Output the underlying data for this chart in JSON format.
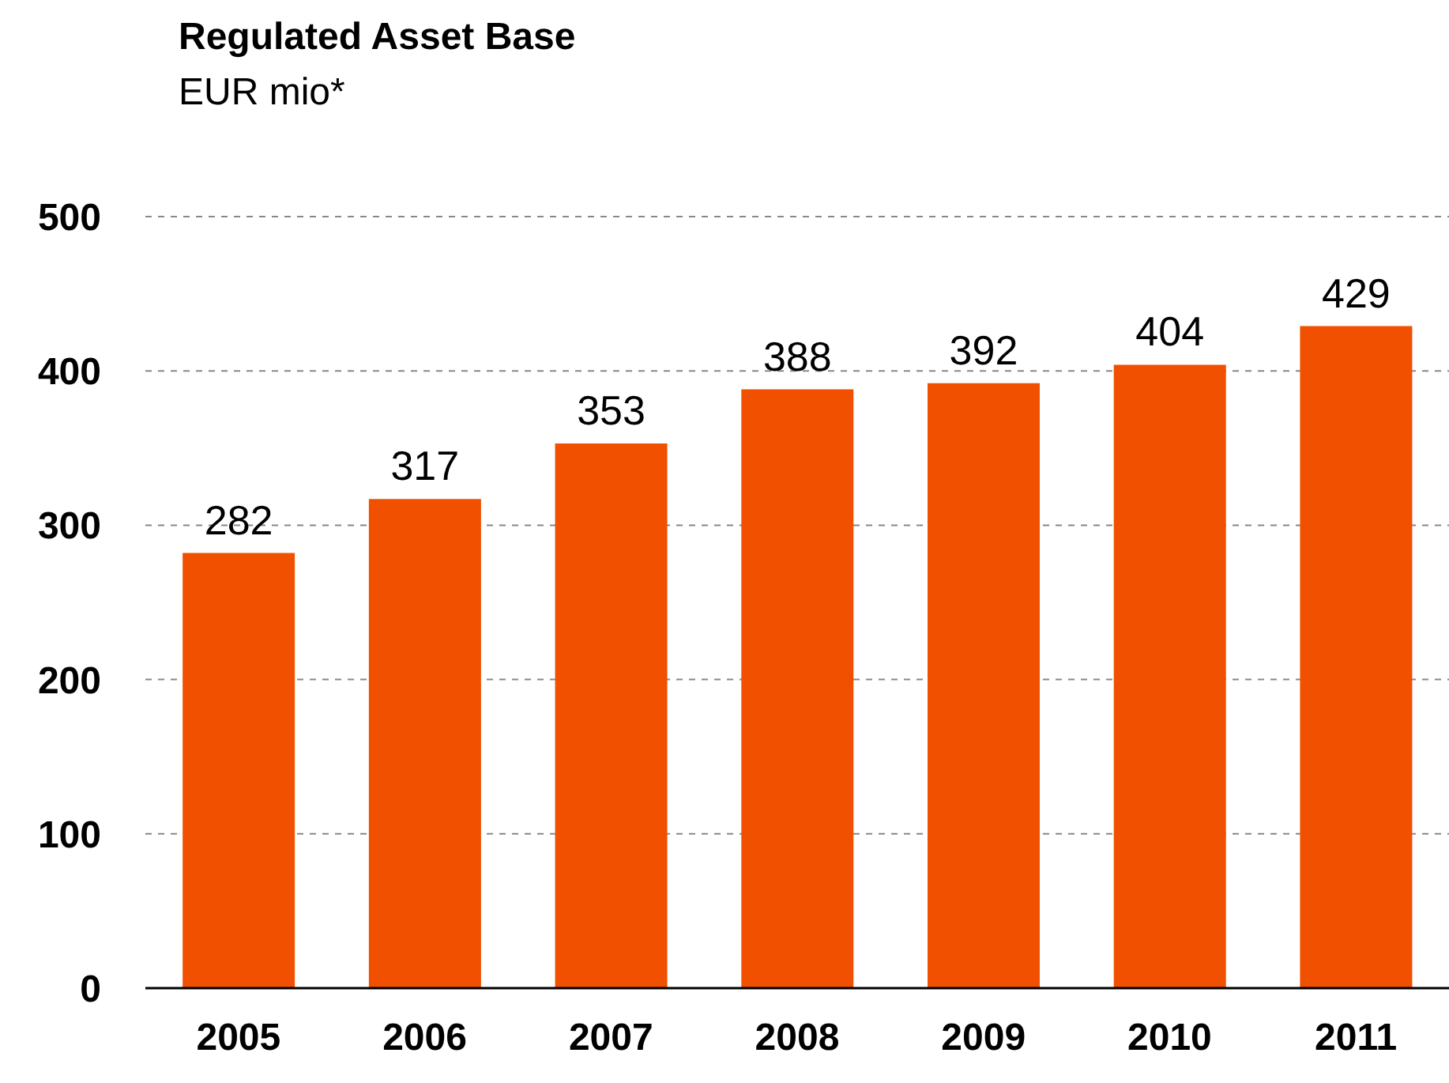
{
  "chart_data": {
    "type": "bar",
    "title": "Regulated Asset Base",
    "subtitle": "EUR mio*",
    "categories": [
      "2005",
      "2006",
      "2007",
      "2008",
      "2009",
      "2010",
      "2011"
    ],
    "values": [
      282,
      317,
      353,
      388,
      392,
      404,
      429
    ],
    "color": "#f05000",
    "ylim": [
      0,
      500
    ],
    "yticks": [
      0,
      100,
      200,
      300,
      400,
      500
    ],
    "grid": "y",
    "data_labels": true
  }
}
